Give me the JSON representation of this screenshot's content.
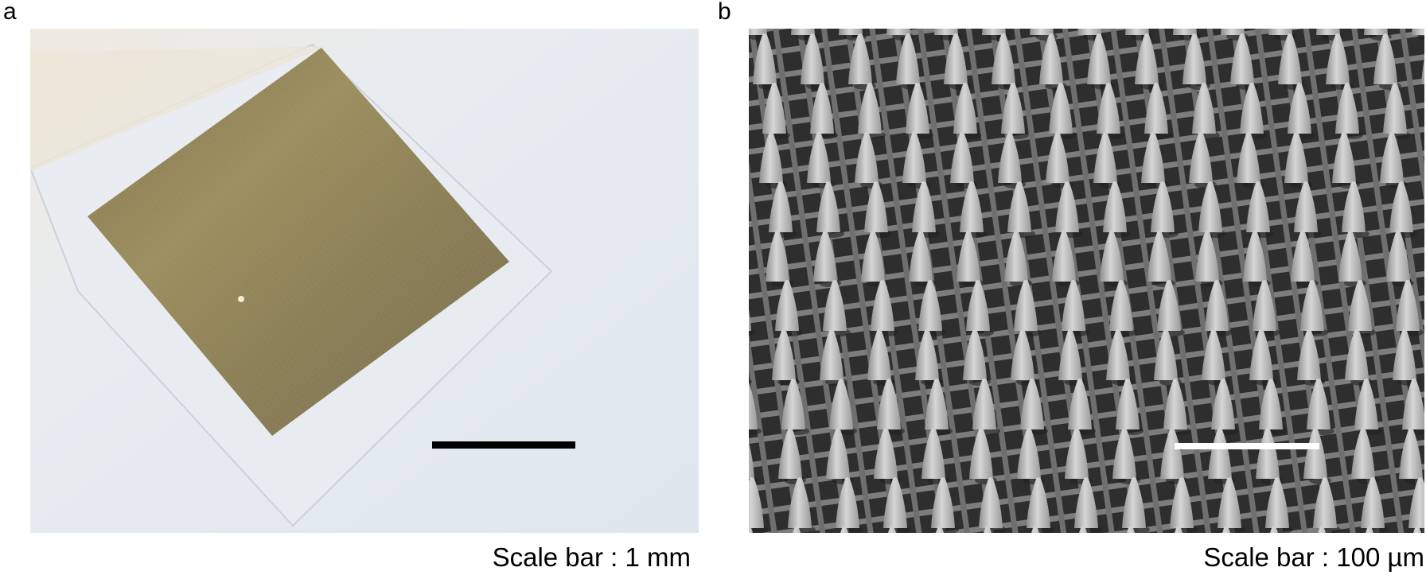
{
  "panel_a": {
    "label": "a",
    "scale_caption": "Scale bar : 1 mm",
    "scale_bar_color": "#000000"
  },
  "panel_b": {
    "label": "b",
    "scale_caption": "Scale bar : 100 µm",
    "scale_bar_color": "#ffffff"
  },
  "colors": {
    "paper_background": "#e3e9f0",
    "gold_film": "#8a7d55",
    "sem_background": "#3c3c3c",
    "microneedle": "#b4b4b4"
  }
}
